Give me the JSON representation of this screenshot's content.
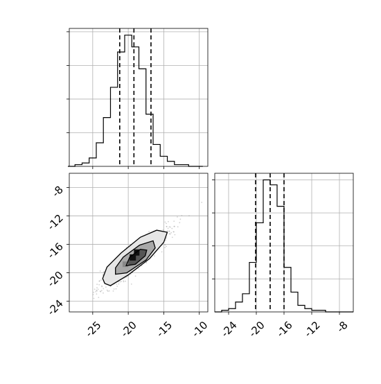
{
  "chart_data": {
    "type": "corner",
    "grid": true,
    "marginal_x": {
      "type": "histogram",
      "bin_edges": [
        -28.5,
        -27.5,
        -26.5,
        -25.5,
        -24.5,
        -23.5,
        -22.5,
        -21.5,
        -20.5,
        -19.5,
        -18.5,
        -17.5,
        -16.5,
        -15.5,
        -14.5,
        -13.5,
        -12.5,
        -11.5,
        -10.5,
        -9.5
      ],
      "counts": [
        0,
        1,
        2,
        5,
        14,
        29,
        47,
        68,
        78,
        71,
        58,
        31,
        13,
        6,
        3,
        1,
        1,
        0,
        0
      ],
      "quantile_lines": [
        -21.2,
        -19.2,
        -16.8
      ],
      "xlim": [
        -28.3,
        -8.8
      ],
      "ylim": [
        0,
        82
      ]
    },
    "scatter_2d": {
      "xlim": [
        -28.3,
        -8.8
      ],
      "ylim": [
        -25.5,
        -6.0
      ],
      "x_ticks": [
        "-25",
        "-20",
        "-15",
        "-10"
      ],
      "x_tick_values": [
        -25,
        -20,
        -15,
        -10
      ],
      "y_ticks": [
        "-8",
        "-12",
        "-16",
        "-20",
        "-24"
      ],
      "y_tick_values": [
        -8,
        -12,
        -16,
        -20,
        -24
      ],
      "center": [
        -19.0,
        -18.0
      ],
      "levels": [
        {
          "points": [
            [
              -23.3,
              -21.5
            ],
            [
              -22.5,
              -21.8
            ],
            [
              -20.0,
              -20.3
            ],
            [
              -17.0,
              -18.0
            ],
            [
              -15.0,
              -15.7
            ],
            [
              -14.5,
              -14.3
            ],
            [
              -16.0,
              -14.0
            ],
            [
              -18.3,
              -15.0
            ],
            [
              -21.0,
              -17.2
            ],
            [
              -23.0,
              -19.2
            ],
            [
              -23.6,
              -20.8
            ]
          ]
        },
        {
          "points": [
            [
              -21.8,
              -20.2
            ],
            [
              -20.2,
              -20.0
            ],
            [
              -17.5,
              -18.2
            ],
            [
              -16.2,
              -16.5
            ],
            [
              -16.5,
              -15.5
            ],
            [
              -18.4,
              -16.1
            ],
            [
              -20.7,
              -17.8
            ],
            [
              -21.8,
              -19.3
            ]
          ]
        },
        {
          "points": [
            [
              -20.3,
              -19.0
            ],
            [
              -19.0,
              -18.8
            ],
            [
              -17.6,
              -17.6
            ],
            [
              -17.4,
              -16.8
            ],
            [
              -18.3,
              -16.7
            ],
            [
              -19.8,
              -17.8
            ]
          ]
        }
      ]
    },
    "marginal_y": {
      "type": "histogram",
      "bin_edges": [
        -26.0,
        -25.0,
        -24.0,
        -23.0,
        -22.0,
        -21.0,
        -20.0,
        -19.0,
        -18.0,
        -17.0,
        -16.0,
        -15.0,
        -14.0,
        -13.0,
        -12.0,
        -11.0,
        -10.0,
        -9.0,
        -8.0,
        -7.0,
        -6.0
      ],
      "counts": [
        0,
        1,
        2,
        6,
        11,
        30,
        54,
        80,
        77,
        64,
        27,
        12,
        4,
        2,
        1,
        1,
        0,
        0,
        0,
        0
      ],
      "quantile_lines": [
        -20.1,
        -18.0,
        -16.0
      ],
      "xlim": [
        -26.0,
        -6.0
      ],
      "ylim": [
        0,
        84
      ],
      "x_ticks": [
        "-24",
        "-20",
        "-16",
        "-12",
        "-8"
      ],
      "x_tick_values": [
        -24,
        -20,
        -16,
        -12,
        -8
      ]
    }
  }
}
